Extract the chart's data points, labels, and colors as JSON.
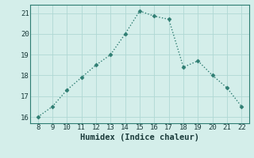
{
  "x": [
    8,
    9,
    10,
    11,
    12,
    13,
    14,
    15,
    16,
    17,
    18,
    19,
    20,
    21,
    22
  ],
  "y": [
    16.0,
    16.5,
    17.3,
    17.9,
    18.5,
    19.0,
    20.0,
    21.1,
    20.85,
    20.7,
    18.4,
    18.7,
    18.0,
    17.4,
    16.5
  ],
  "xlabel": "Humidex (Indice chaleur)",
  "line_color": "#2e7d72",
  "marker": "D",
  "marker_size": 2.5,
  "bg_color": "#d4eeea",
  "grid_color": "#b0d8d4",
  "xlim": [
    7.5,
    22.5
  ],
  "ylim": [
    15.7,
    21.4
  ],
  "xticks": [
    8,
    9,
    10,
    11,
    12,
    13,
    14,
    15,
    16,
    17,
    18,
    19,
    20,
    21,
    22
  ],
  "yticks": [
    16,
    17,
    18,
    19,
    20,
    21
  ],
  "tick_fontsize": 6.5,
  "xlabel_fontsize": 7.5,
  "spine_color": "#2e7d72",
  "line_width": 1.0
}
